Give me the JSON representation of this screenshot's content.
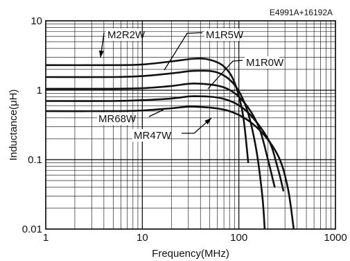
{
  "chart_data": {
    "type": "line",
    "code": "E4991A+16192A",
    "xlabel": "Frequency(MHz)",
    "ylabel": "Inductance(μH)",
    "x_scale": "log",
    "y_scale": "log",
    "xlim": [
      1,
      1000
    ],
    "ylim": [
      0.01,
      10
    ],
    "x_ticks": [
      {
        "v": 1,
        "label": "1"
      },
      {
        "v": 10,
        "label": "10"
      },
      {
        "v": 100,
        "label": "100"
      },
      {
        "v": 1000,
        "label": "1000"
      }
    ],
    "y_ticks": [
      {
        "v": 10,
        "label": "10"
      },
      {
        "v": 1,
        "label": "1"
      },
      {
        "v": 0.1,
        "label": "0.1"
      },
      {
        "v": 0.01,
        "label": "0.01"
      }
    ],
    "grid": true,
    "series": [
      {
        "name": "M2R2W",
        "color": "#111111",
        "points": [
          [
            1,
            2.3
          ],
          [
            5,
            2.3
          ],
          [
            10,
            2.35
          ],
          [
            20,
            2.6
          ],
          [
            35,
            2.85
          ],
          [
            50,
            2.75
          ],
          [
            70,
            2.2
          ],
          [
            90,
            1.3
          ],
          [
            110,
            0.45
          ],
          [
            125,
            0.09
          ]
        ]
      },
      {
        "name": "M1R5W",
        "color": "#111111",
        "points": [
          [
            1,
            1.55
          ],
          [
            5,
            1.55
          ],
          [
            10,
            1.6
          ],
          [
            20,
            1.75
          ],
          [
            35,
            1.9
          ],
          [
            60,
            1.8
          ],
          [
            90,
            1.2
          ],
          [
            120,
            0.55
          ],
          [
            150,
            0.15
          ],
          [
            175,
            0.03
          ],
          [
            185,
            0.01
          ]
        ]
      },
      {
        "name": "M1R0W",
        "color": "#111111",
        "points": [
          [
            1,
            1.05
          ],
          [
            5,
            1.05
          ],
          [
            10,
            1.07
          ],
          [
            20,
            1.15
          ],
          [
            35,
            1.25
          ],
          [
            70,
            1.1
          ],
          [
            110,
            0.7
          ],
          [
            160,
            0.3
          ],
          [
            200,
            0.1
          ],
          [
            235,
            0.04
          ]
        ]
      },
      {
        "name": "MR68W",
        "color": "#111111",
        "points": [
          [
            1,
            0.7
          ],
          [
            5,
            0.7
          ],
          [
            10,
            0.72
          ],
          [
            20,
            0.76
          ],
          [
            35,
            0.82
          ],
          [
            70,
            0.75
          ],
          [
            120,
            0.5
          ],
          [
            200,
            0.2
          ],
          [
            250,
            0.08
          ],
          [
            290,
            0.035
          ]
        ]
      },
      {
        "name": "MR47W",
        "color": "#111111",
        "points": [
          [
            1,
            0.5
          ],
          [
            5,
            0.5
          ],
          [
            10,
            0.51
          ],
          [
            20,
            0.55
          ],
          [
            35,
            0.58
          ],
          [
            80,
            0.5
          ],
          [
            150,
            0.3
          ],
          [
            250,
            0.12
          ],
          [
            320,
            0.04
          ],
          [
            370,
            0.01
          ]
        ]
      }
    ],
    "annotations": [
      {
        "text": "M2R2W"
      },
      {
        "text": "M1R5W"
      },
      {
        "text": "M1R0W"
      },
      {
        "text": "MR68W"
      },
      {
        "text": "MR47W"
      }
    ]
  }
}
